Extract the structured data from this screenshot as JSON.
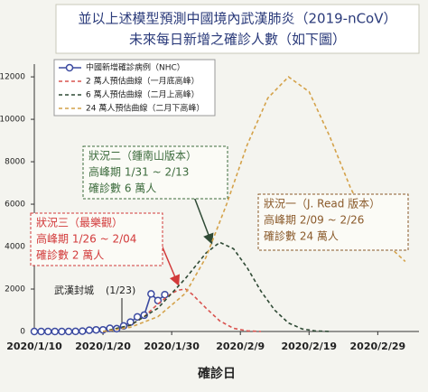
{
  "chart_data": {
    "type": "line",
    "title": "並以上述模型預測中國境內武漢肺炎（2019-nCoV）",
    "subtitle": "未來每日新增之確診人數（如下圖）",
    "x_label": "確診日",
    "xlim": [
      "2020/1/10",
      "2020/3/6"
    ],
    "xticks": [
      "2020/1/10",
      "2020/1/20",
      "2020/1/30",
      "2020/2/9",
      "2020/2/19",
      "2020/2/29"
    ],
    "ylim": [
      0,
      12600
    ],
    "yticks": [
      0,
      2000,
      4000,
      6000,
      8000,
      10000,
      12000
    ],
    "grid": false,
    "series": [
      {
        "name": "中國新增確診病例（NHC）",
        "color": "#3b4aa0",
        "marker": "circle",
        "dash": false,
        "x": [
          "2020/1/10",
          "2020/1/11",
          "2020/1/12",
          "2020/1/13",
          "2020/1/14",
          "2020/1/15",
          "2020/1/16",
          "2020/1/17",
          "2020/1/18",
          "2020/1/19",
          "2020/1/20",
          "2020/1/21",
          "2020/1/22",
          "2020/1/23",
          "2020/1/24",
          "2020/1/25",
          "2020/1/26",
          "2020/1/27",
          "2020/1/28",
          "2020/1/29"
        ],
        "values": [
          0,
          0,
          0,
          0,
          0,
          0,
          4,
          17,
          59,
          77,
          77,
          149,
          131,
          259,
          444,
          688,
          769,
          1771,
          1459,
          1737
        ]
      },
      {
        "name": "2 萬人預估曲線（一月底高峰）",
        "color": "#d9534f",
        "marker": "none",
        "dash": true,
        "x": [
          "2020/1/20",
          "2020/1/22",
          "2020/1/24",
          "2020/1/26",
          "2020/1/28",
          "2020/1/30",
          "2020/1/31",
          "2020/2/1",
          "2020/2/2",
          "2020/2/4",
          "2020/2/6",
          "2020/2/8",
          "2020/2/10",
          "2020/2/12"
        ],
        "values": [
          0,
          100,
          300,
          700,
          1300,
          1800,
          1950,
          2000,
          1750,
          1100,
          500,
          150,
          30,
          0
        ]
      },
      {
        "name": "6 萬人預估曲線（二月上高峰）",
        "color": "#2f4a35",
        "marker": "none",
        "dash": true,
        "x": [
          "2020/1/20",
          "2020/1/24",
          "2020/1/28",
          "2020/2/1",
          "2020/2/4",
          "2020/2/6",
          "2020/2/8",
          "2020/2/10",
          "2020/2/12",
          "2020/2/14",
          "2020/2/16",
          "2020/2/18",
          "2020/2/20",
          "2020/2/22"
        ],
        "values": [
          0,
          300,
          1100,
          2500,
          3700,
          4200,
          3900,
          3000,
          1900,
          1000,
          400,
          120,
          20,
          0
        ]
      },
      {
        "name": "24 萬人預估曲線（二月下高峰）",
        "color": "#d4a24a",
        "marker": "none",
        "dash": true,
        "x": [
          "2020/1/20",
          "2020/1/24",
          "2020/1/28",
          "2020/2/1",
          "2020/2/4",
          "2020/2/7",
          "2020/2/10",
          "2020/2/13",
          "2020/2/16",
          "2020/2/19",
          "2020/2/22",
          "2020/2/25",
          "2020/2/28",
          "2020/3/4"
        ],
        "values": [
          0,
          200,
          700,
          1800,
          3500,
          6000,
          8800,
          11000,
          12000,
          11300,
          9200,
          6800,
          4800,
          3300
        ]
      }
    ],
    "annotations": [
      {
        "color": "#3c6b3c",
        "lines": [
          "狀況二（鍾南山版本）",
          "高峰期 1/31 ~ 2/13",
          "確診數 6 萬人"
        ]
      },
      {
        "color": "#8a5a2a",
        "lines": [
          "狀況一（J. Read 版本）",
          "高峰期 2/09 ~ 2/26",
          "確診數 24 萬人"
        ]
      },
      {
        "color": "#d23a3a",
        "lines": [
          "狀況三（最樂觀）",
          "高峰期 1/26 ~ 2/04",
          "確診數 2 萬人"
        ]
      },
      {
        "color": "#222222",
        "lines": [
          "武漢封城",
          "(1/23)"
        ]
      }
    ]
  }
}
